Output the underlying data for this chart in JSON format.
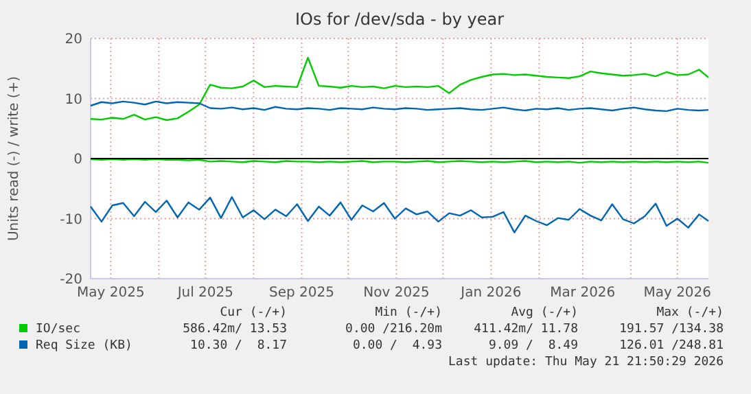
{
  "chart_data": {
    "type": "line",
    "title": "IOs for /dev/sda - by year",
    "ylabel": "Units read (-) / write (+)",
    "x": [
      "2025-04-18",
      "2025-04-25",
      "2025-05-02",
      "2025-05-09",
      "2025-05-16",
      "2025-05-23",
      "2025-05-30",
      "2025-06-06",
      "2025-06-13",
      "2025-06-20",
      "2025-06-27",
      "2025-07-04",
      "2025-07-11",
      "2025-07-18",
      "2025-07-25",
      "2025-08-01",
      "2025-08-08",
      "2025-08-15",
      "2025-08-22",
      "2025-08-29",
      "2025-09-05",
      "2025-09-12",
      "2025-09-19",
      "2025-09-26",
      "2025-10-03",
      "2025-10-10",
      "2025-10-17",
      "2025-10-24",
      "2025-10-31",
      "2025-11-07",
      "2025-11-14",
      "2025-11-21",
      "2025-11-28",
      "2025-12-05",
      "2025-12-12",
      "2025-12-19",
      "2025-12-26",
      "2026-01-02",
      "2026-01-09",
      "2026-01-16",
      "2026-01-23",
      "2026-01-30",
      "2026-02-06",
      "2026-02-13",
      "2026-02-20",
      "2026-02-27",
      "2026-03-06",
      "2026-03-13",
      "2026-03-20",
      "2026-03-27",
      "2026-04-03",
      "2026-04-10",
      "2026-04-17",
      "2026-04-24",
      "2026-05-01",
      "2026-05-08",
      "2026-05-15",
      "2026-05-21"
    ],
    "series": [
      {
        "name": "IO/sec",
        "color": "#00cc00",
        "values": [
          6.6,
          6.5,
          6.8,
          6.6,
          7.3,
          6.5,
          6.9,
          6.4,
          6.7,
          7.8,
          9.0,
          12.3,
          11.8,
          11.7,
          12.0,
          13.0,
          11.9,
          12.1,
          12.0,
          11.9,
          16.8,
          12.1,
          12.0,
          11.8,
          12.1,
          11.9,
          12.0,
          11.7,
          12.1,
          11.9,
          12.0,
          11.9,
          12.1,
          10.9,
          12.3,
          13.1,
          13.6,
          14.0,
          14.1,
          13.9,
          14.0,
          13.8,
          13.6,
          13.5,
          13.4,
          13.7,
          14.5,
          14.2,
          14.0,
          13.8,
          13.9,
          14.1,
          13.7,
          14.4,
          13.9,
          14.0,
          14.8,
          13.5
        ]
      },
      {
        "color": "#00cc00",
        "values": [
          -0.1,
          -0.2,
          -0.1,
          -0.2,
          -0.1,
          -0.2,
          -0.1,
          -0.2,
          -0.2,
          -0.3,
          -0.2,
          -0.5,
          -0.4,
          -0.5,
          -0.6,
          -0.4,
          -0.5,
          -0.6,
          -0.4,
          -0.5,
          -0.5,
          -0.6,
          -0.5,
          -0.6,
          -0.5,
          -0.4,
          -0.6,
          -0.5,
          -0.5,
          -0.6,
          -0.5,
          -0.4,
          -0.6,
          -0.5,
          -0.4,
          -0.5,
          -0.6,
          -0.5,
          -0.6,
          -0.5,
          -0.4,
          -0.6,
          -0.5,
          -0.6,
          -0.5,
          -0.7,
          -0.5,
          -0.6,
          -0.5,
          -0.6,
          -0.5,
          -0.6,
          -0.5,
          -0.6,
          -0.5,
          -0.6,
          -0.5,
          -0.7
        ]
      },
      {
        "name": "Req Size (KB)",
        "color": "#0066b3",
        "values": [
          8.8,
          9.4,
          9.2,
          9.5,
          9.3,
          9.0,
          9.5,
          9.2,
          9.4,
          9.3,
          9.2,
          8.4,
          8.3,
          8.5,
          8.2,
          8.4,
          8.1,
          8.6,
          8.3,
          8.2,
          8.4,
          8.3,
          8.1,
          8.4,
          8.3,
          8.2,
          8.5,
          8.3,
          8.2,
          8.4,
          8.3,
          8.1,
          8.2,
          8.3,
          8.4,
          8.2,
          8.1,
          8.3,
          8.5,
          8.2,
          8.0,
          8.3,
          8.2,
          8.4,
          8.1,
          8.3,
          8.4,
          8.2,
          8.0,
          8.3,
          8.5,
          8.2,
          8.0,
          7.9,
          8.3,
          8.1,
          8.0,
          8.1
        ]
      },
      {
        "color": "#0066b3",
        "values": [
          -8.0,
          -10.5,
          -7.8,
          -7.4,
          -9.6,
          -7.2,
          -8.9,
          -7.0,
          -9.8,
          -7.3,
          -8.5,
          -6.5,
          -9.9,
          -6.4,
          -9.8,
          -8.6,
          -10.1,
          -8.5,
          -9.6,
          -7.6,
          -10.4,
          -8.0,
          -9.5,
          -7.3,
          -10.2,
          -7.8,
          -8.8,
          -7.4,
          -10.0,
          -8.3,
          -9.3,
          -8.8,
          -10.5,
          -9.1,
          -9.5,
          -8.6,
          -9.8,
          -9.7,
          -8.9,
          -12.3,
          -9.5,
          -10.4,
          -11.1,
          -9.9,
          -10.2,
          -8.4,
          -9.5,
          -10.3,
          -7.6,
          -10.1,
          -10.8,
          -9.6,
          -7.5,
          -11.2,
          -10.0,
          -11.5,
          -9.3,
          -10.4
        ]
      }
    ],
    "xlim": [
      "2025-04-18",
      "2026-05-21"
    ],
    "xticks": [
      {
        "value": "2025-05-01",
        "label": "May 2025"
      },
      {
        "value": "2025-06-01",
        "label": null
      },
      {
        "value": "2025-07-01",
        "label": "Jul 2025"
      },
      {
        "value": "2025-08-01",
        "label": null
      },
      {
        "value": "2025-09-01",
        "label": "Sep 2025"
      },
      {
        "value": "2025-10-01",
        "label": null
      },
      {
        "value": "2025-11-01",
        "label": "Nov 2025"
      },
      {
        "value": "2025-12-01",
        "label": null
      },
      {
        "value": "2026-01-01",
        "label": "Jan 2026"
      },
      {
        "value": "2026-02-01",
        "label": null
      },
      {
        "value": "2026-03-01",
        "label": "Mar 2026"
      },
      {
        "value": "2026-04-01",
        "label": null
      },
      {
        "value": "2026-05-01",
        "label": "May 2026"
      }
    ],
    "ylim": [
      -20,
      20
    ],
    "yticks": [
      -20,
      -10,
      0,
      10,
      20
    ],
    "grid": true,
    "legend": "bottom",
    "marker": "none",
    "line_style": "solid",
    "ref_lines": [
      {
        "axis": "y",
        "value": 0,
        "color": "#000000"
      }
    ],
    "annotations": [
      "Cur (-/+)",
      "Min (-/+)",
      "Avg (-/+)",
      "Max (-/+)",
      "586.42m/ 13.53",
      "0.00 /216.20m",
      "411.42m/ 11.78",
      "191.57 /134.38",
      "10.30 /  8.17",
      "0.00 /  4.93",
      "9.09 /  8.49",
      "126.01 /248.81",
      "Last update: Thu May 21 21:50:29 2026"
    ]
  }
}
